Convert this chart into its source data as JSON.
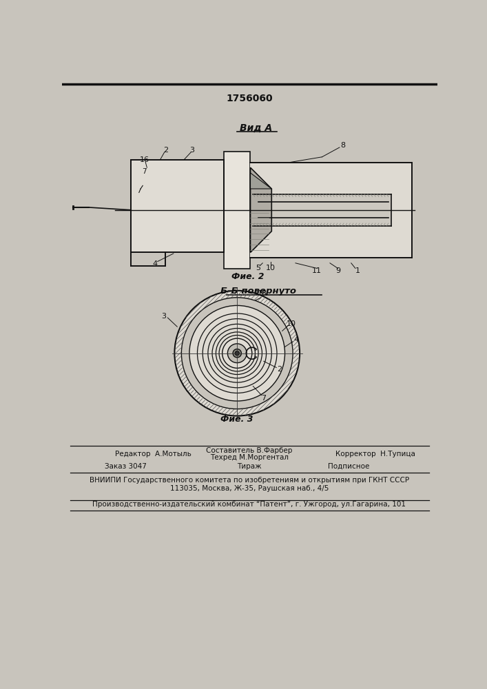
{
  "patent_number": "1756060",
  "background_color": "#c8c4bc",
  "paper_color": "#dedad2",
  "title": "1756060",
  "fig2_label": "Фие. 2",
  "fig3_label": "Фие. 3",
  "vid_a_label": "Вид A",
  "bb_label": "Б-Б повернуто",
  "footer_line1_left": "Редактор  А.Мотыль",
  "footer_line1_center1": "Составитель В.Фарбер",
  "footer_line1_center2": "Техред М.Моргентал",
  "footer_line1_right": "Корректор  Н.Тупица",
  "footer_order": "Заказ 3047",
  "footer_tirazh": "Тираж",
  "footer_podp": "Подписное",
  "footer_line3": "ВНИИПИ Государственного комитета по изобретениям и открытиям при ГКНТ СССР",
  "footer_line4": "113035, Москва, Ж-35, Раушская наб., 4/5",
  "footer_line5": "Производственно-издательский комбинат “Патент”, г. Ужгород, ул.Гагарина, 101"
}
